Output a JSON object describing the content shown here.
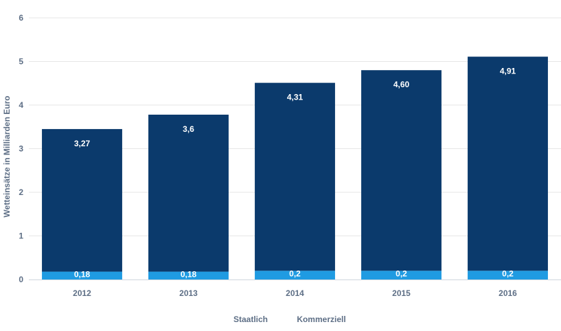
{
  "chart_data": {
    "type": "bar",
    "stacked": true,
    "title": "",
    "xlabel": "",
    "ylabel": "Wetteinsätze in Milliarden Euro",
    "ylim": [
      0,
      6
    ],
    "yticks": [
      "0",
      "1",
      "2",
      "3",
      "4",
      "5",
      "6"
    ],
    "grid": true,
    "categories": [
      "2012",
      "2013",
      "2014",
      "2015",
      "2016"
    ],
    "series": [
      {
        "name": "Staatlich",
        "color": "#1f9be2",
        "values": [
          0.18,
          0.18,
          0.2,
          0.2,
          0.2
        ],
        "labels": [
          "0,18",
          "0,18",
          "0,2",
          "0,2",
          "0,2"
        ]
      },
      {
        "name": "Kommerziell",
        "color": "#0b3a6c",
        "values": [
          3.27,
          3.6,
          4.31,
          4.6,
          4.91
        ],
        "labels": [
          "3,27",
          "3,6",
          "4,31",
          "4,60",
          "4,91"
        ]
      }
    ],
    "legend_position": "bottom-center"
  }
}
